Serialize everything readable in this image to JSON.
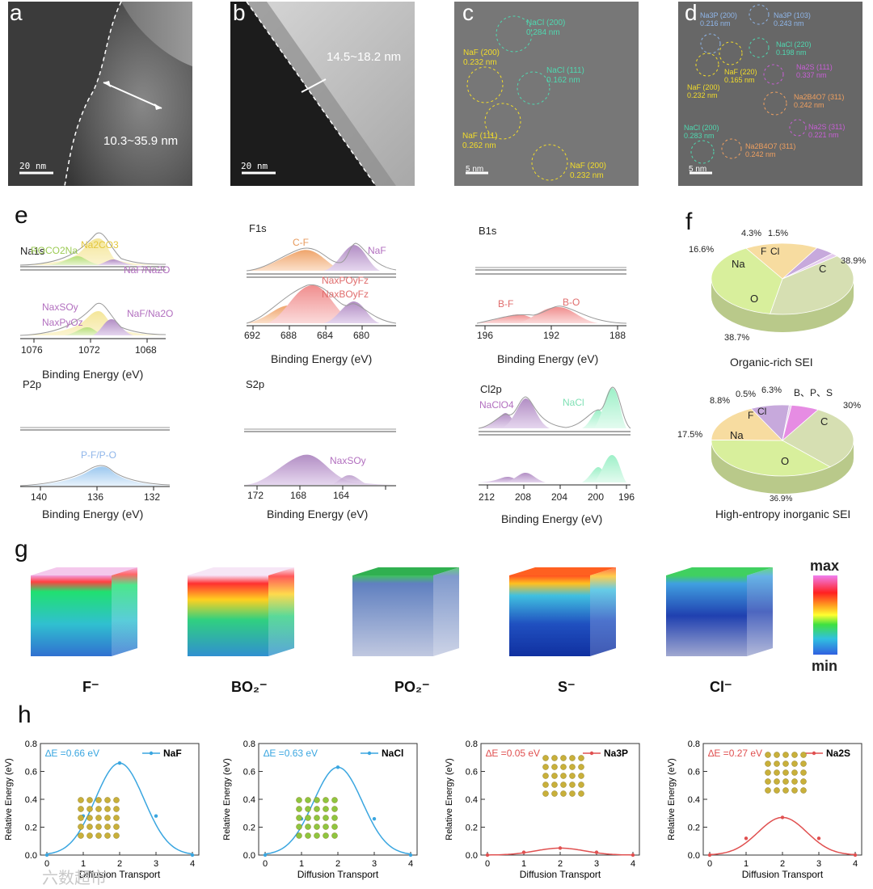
{
  "panels": {
    "a": "a",
    "b": "b",
    "c": "c",
    "d": "d",
    "e": "e",
    "f": "f",
    "g": "g",
    "h": "h"
  },
  "tem_a": {
    "measure": "10.3~35.9 nm",
    "scale": "20 nm"
  },
  "tem_b": {
    "measure": "14.5~18.2 nm",
    "scale": "20 nm"
  },
  "tem_c": {
    "scale": "5 nm",
    "labels": [
      {
        "name": "NaCl (200)",
        "d": "0.284 nm",
        "color": "#4fd8b0"
      },
      {
        "name": "NaF (200)",
        "d": "0.232 nm",
        "color": "#f2dc2a"
      },
      {
        "name": "NaCl (111)",
        "d": "0.162 nm",
        "color": "#4fd8b0"
      },
      {
        "name": "NaF (111)",
        "d": "0.262 nm",
        "color": "#f2dc2a"
      },
      {
        "name": "NaF (200)",
        "d": "0.232 nm",
        "color": "#f2dc2a"
      }
    ]
  },
  "tem_d": {
    "scale": "5 nm",
    "labels": [
      {
        "name": "Na3P (200)",
        "d": "0.216 nm",
        "color": "#8fb6ea"
      },
      {
        "name": "Na3P (103)",
        "d": "0.243 nm",
        "color": "#8fb6ea"
      },
      {
        "name": "NaCl (220)",
        "d": "0.198 nm",
        "color": "#4fd8b0"
      },
      {
        "name": "NaF (200)",
        "d": "0.232 nm",
        "color": "#f2dc2a"
      },
      {
        "name": "NaF (220)",
        "d": "0.165 nm",
        "color": "#f2dc2a"
      },
      {
        "name": "Na2S (111)",
        "d": "0.337 nm",
        "color": "#c85fd6"
      },
      {
        "name": "Na2B4O7 (311)",
        "d": "0.242 nm",
        "color": "#f0a060"
      },
      {
        "name": "NaCl (200)",
        "d": "0.283 nm",
        "color": "#4fd8b0"
      },
      {
        "name": "Na2S (311)",
        "d": "0.221 nm",
        "color": "#c85fd6"
      },
      {
        "name": "Na2B4O7 (311)",
        "d": "0.242 nm",
        "color": "#f0a060"
      }
    ]
  },
  "xps": {
    "xlabel": "Binding Energy (eV)",
    "na1s": {
      "name": "Na1s",
      "ticks": [
        "1076",
        "1072",
        "1068"
      ],
      "top": [
        "ROCO2Na",
        "Na2CO3",
        "NaF/Na2O"
      ],
      "bottom": [
        "NaxSOy",
        "NaxPyOz",
        "NaF/Na2O"
      ]
    },
    "f1s": {
      "name": "F1s",
      "ticks": [
        "692",
        "688",
        "684",
        "680"
      ],
      "top": [
        "C-F",
        "NaF"
      ],
      "bottom": [
        "NaxPOyFz",
        "NaxBOyFz"
      ]
    },
    "b1s": {
      "name": "B1s",
      "ticks": [
        "196",
        "192",
        "188"
      ],
      "bottom": [
        "B-F",
        "B-O"
      ]
    },
    "p2p": {
      "name": "P2p",
      "ticks": [
        "140",
        "136",
        "132"
      ],
      "bottom": [
        "P-F/P-O"
      ]
    },
    "s2p": {
      "name": "S2p",
      "ticks": [
        "172",
        "168",
        "164"
      ],
      "bottom": [
        "NaxSOy"
      ]
    },
    "cl2p": {
      "name": "Cl2p",
      "ticks": [
        "212",
        "208",
        "204",
        "200",
        "196"
      ],
      "top": [
        "NaClO4",
        "NaCl"
      ]
    }
  },
  "pies": {
    "organic": {
      "caption": "Organic-rich SEI",
      "slices": [
        {
          "label": "C",
          "pct": "38.9%",
          "value": 38.9,
          "color": "#d6dfb2"
        },
        {
          "label": "O",
          "pct": "38.7%",
          "value": 38.7,
          "color": "#d8ef9c"
        },
        {
          "label": "Na",
          "pct": "16.6%",
          "value": 16.6,
          "color": "#f7dca0"
        },
        {
          "label": "F",
          "pct": "4.3%",
          "value": 4.3,
          "color": "#c7a9dc"
        },
        {
          "label": "Cl",
          "pct": "1.5%",
          "value": 1.5,
          "color": "#e5ccee"
        }
      ]
    },
    "inorganic": {
      "caption": "High-entropy inorganic SEI",
      "extra_label": "B、P、S",
      "slices": [
        {
          "label": "C",
          "pct": "30%",
          "value": 30,
          "color": "#d6dfb2"
        },
        {
          "label": "O",
          "pct": "36.9%",
          "value": 36.9,
          "color": "#d8ef9c"
        },
        {
          "label": "Na",
          "pct": "17.5%",
          "value": 17.5,
          "color": "#f7dca0"
        },
        {
          "label": "F",
          "pct": "8.8%",
          "value": 8.8,
          "color": "#c7a9dc"
        },
        {
          "label": "Cl",
          "pct": "0.5%",
          "value": 0.5,
          "color": "#e5ccee"
        },
        {
          "label": "",
          "pct": "6.3%",
          "value": 6.3,
          "color": "#e68ce3"
        }
      ]
    }
  },
  "cubes": {
    "ions": [
      "F⁻",
      "BO₂⁻",
      "PO₂⁻",
      "S⁻",
      "Cl⁻"
    ],
    "colorbar_max": "max",
    "colorbar_min": "min"
  },
  "chart_data": [
    {
      "type": "line",
      "title": "NaF",
      "delta": "∆E =0.66 eV",
      "color": "#3aa6e0",
      "x": [
        0,
        1,
        2,
        3,
        4
      ],
      "y": [
        0.0,
        0.28,
        0.66,
        0.28,
        0.0
      ],
      "xlabel": "Diffusion Transport",
      "ylabel": "Relative Energy (eV)",
      "ylim": [
        0,
        0.8
      ],
      "yticks": [
        "0.0",
        "0.2",
        "0.4",
        "0.6",
        "0.8"
      ],
      "xticks": [
        "0",
        "1",
        "2",
        "3",
        "4"
      ]
    },
    {
      "type": "line",
      "title": "NaCl",
      "delta": "∆E =0.63 eV",
      "color": "#3aa6e0",
      "x": [
        0,
        1,
        2,
        3,
        4
      ],
      "y": [
        0.0,
        0.26,
        0.63,
        0.26,
        0.0
      ],
      "xlabel": "Diffusion Transport",
      "ylabel": "Relative Energy (eV)",
      "ylim": [
        0,
        0.8
      ],
      "yticks": [
        "0.0",
        "0.2",
        "0.4",
        "0.6",
        "0.8"
      ],
      "xticks": [
        "0",
        "1",
        "2",
        "3",
        "4"
      ]
    },
    {
      "type": "line",
      "title": "Na3P",
      "delta": "∆E =0.05 eV",
      "color": "#e05050",
      "x": [
        0,
        1,
        2,
        3,
        4
      ],
      "y": [
        0.0,
        0.02,
        0.05,
        0.02,
        0.0
      ],
      "xlabel": "Diffusion Transport",
      "ylabel": "Relative Energy (eV)",
      "ylim": [
        0,
        0.8
      ],
      "yticks": [
        "0.0",
        "0.2",
        "0.4",
        "0.6",
        "0.8"
      ],
      "xticks": [
        "0",
        "1",
        "2",
        "3",
        "4"
      ]
    },
    {
      "type": "line",
      "title": "Na2S",
      "delta": "∆E =0.27 eV",
      "color": "#e05050",
      "x": [
        0,
        1,
        2,
        3,
        4
      ],
      "y": [
        0.0,
        0.12,
        0.27,
        0.12,
        0.0
      ],
      "xlabel": "Diffusion Transport",
      "ylabel": "Relative Energy (eV)",
      "ylim": [
        0,
        0.8
      ],
      "yticks": [
        "0.0",
        "0.2",
        "0.4",
        "0.6",
        "0.8"
      ],
      "xticks": [
        "0",
        "1",
        "2",
        "3",
        "4"
      ]
    }
  ],
  "watermark": "六数超市"
}
